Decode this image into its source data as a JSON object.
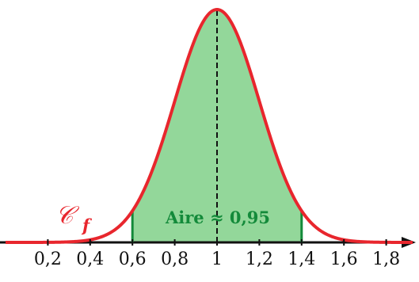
{
  "chart_data": {
    "type": "area",
    "curve": "normal-density",
    "mean": 1,
    "sd": 0.2,
    "x_range": [
      0,
      2
    ],
    "shaded_interval": [
      0.6,
      1.4
    ],
    "tick_labels": [
      "0,2",
      "0,4",
      "0,6",
      "0,8",
      "1",
      "1,2",
      "1,4",
      "1,6",
      "1,8"
    ],
    "tick_values": [
      0.2,
      0.4,
      0.6,
      0.8,
      1,
      1.2,
      1.4,
      1.6,
      1.8
    ],
    "area_label": "Aire ≈ 0,95",
    "curve_label": "𝒞",
    "curve_label_sub": "f",
    "grid": false,
    "y_axis": false,
    "colors": {
      "curve": "#e8262d",
      "area_fill": "#93d79a",
      "bounds": "#138a3a",
      "axis": "#111111"
    }
  }
}
